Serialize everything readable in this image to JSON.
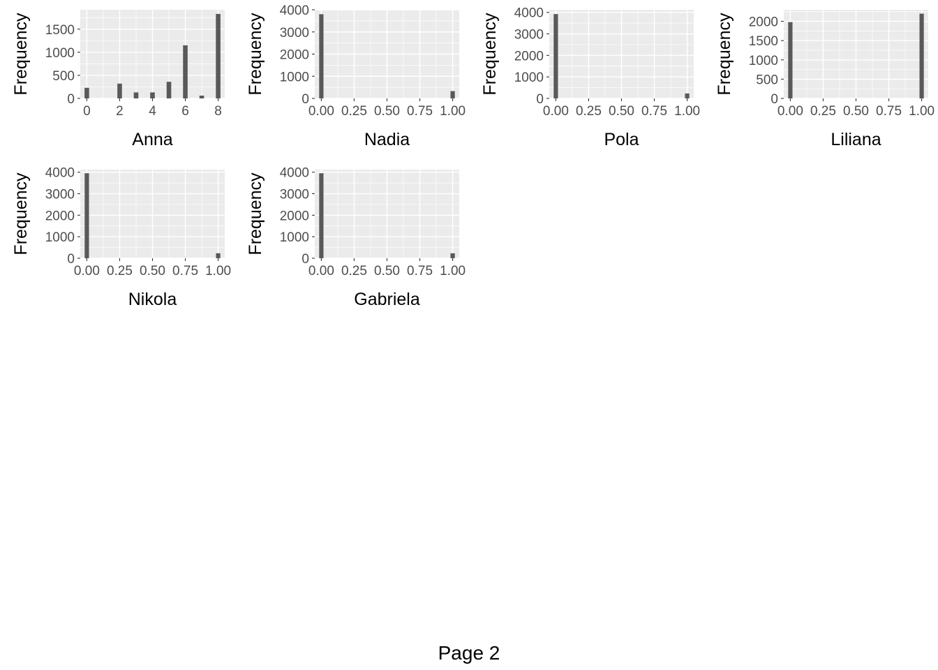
{
  "page": {
    "footer": "Page 2"
  },
  "colors": {
    "panel_background": "#ebebeb",
    "gridline": "#ffffff",
    "bar_fill": "#595959",
    "tick_text": "#4d4d4d",
    "axis_title": "#000000"
  },
  "chart_data": [
    {
      "type": "bar",
      "xlabel": "Anna",
      "ylabel": "Frequency",
      "x": [
        0,
        2,
        3,
        4,
        5,
        6,
        7,
        8
      ],
      "values": [
        230,
        320,
        130,
        130,
        360,
        1150,
        60,
        1830
      ],
      "xlim": [
        -0.4,
        8.4
      ],
      "ylim": [
        0,
        1920
      ],
      "xticks": [
        0,
        2,
        4,
        6,
        8
      ],
      "xtick_labels": [
        "0",
        "2",
        "4",
        "6",
        "8"
      ],
      "yticks": [
        0,
        500,
        1000,
        1500
      ],
      "ytick_labels": [
        "0",
        "500",
        "1000",
        "1500"
      ],
      "bar_width": 0.28,
      "grid": true
    },
    {
      "type": "bar",
      "xlabel": "Nadia",
      "ylabel": "Frequency",
      "x": [
        0,
        1
      ],
      "values": [
        3800,
        330
      ],
      "xlim": [
        -0.05,
        1.05
      ],
      "ylim": [
        0,
        4000
      ],
      "xticks": [
        0,
        0.25,
        0.5,
        0.75,
        1
      ],
      "xtick_labels": [
        "0.00",
        "0.25",
        "0.50",
        "0.75",
        "1.00"
      ],
      "yticks": [
        0,
        1000,
        2000,
        3000,
        4000
      ],
      "ytick_labels": [
        "0",
        "1000",
        "2000",
        "3000",
        "4000"
      ],
      "bar_width": 0.033,
      "grid": true
    },
    {
      "type": "bar",
      "xlabel": "Pola",
      "ylabel": "Frequency",
      "x": [
        0,
        1
      ],
      "values": [
        3920,
        230
      ],
      "xlim": [
        -0.05,
        1.05
      ],
      "ylim": [
        0,
        4120
      ],
      "xticks": [
        0,
        0.25,
        0.5,
        0.75,
        1
      ],
      "xtick_labels": [
        "0.00",
        "0.25",
        "0.50",
        "0.75",
        "1.00"
      ],
      "yticks": [
        0,
        1000,
        2000,
        3000,
        4000
      ],
      "ytick_labels": [
        "0",
        "1000",
        "2000",
        "3000",
        "4000"
      ],
      "bar_width": 0.033,
      "grid": true
    },
    {
      "type": "bar",
      "xlabel": "Liliana",
      "ylabel": "Frequency",
      "x": [
        0,
        1
      ],
      "values": [
        1980,
        2200
      ],
      "xlim": [
        -0.05,
        1.05
      ],
      "ylim": [
        0,
        2300
      ],
      "xticks": [
        0,
        0.25,
        0.5,
        0.75,
        1
      ],
      "xtick_labels": [
        "0.00",
        "0.25",
        "0.50",
        "0.75",
        "1.00"
      ],
      "yticks": [
        0,
        500,
        1000,
        1500,
        2000
      ],
      "ytick_labels": [
        "0",
        "500",
        "1000",
        "1500",
        "2000"
      ],
      "bar_width": 0.033,
      "grid": true
    },
    {
      "type": "bar",
      "xlabel": "Nikola",
      "ylabel": "Frequency",
      "x": [
        0,
        1
      ],
      "values": [
        3950,
        230
      ],
      "xlim": [
        -0.05,
        1.05
      ],
      "ylim": [
        0,
        4120
      ],
      "xticks": [
        0,
        0.25,
        0.5,
        0.75,
        1
      ],
      "xtick_labels": [
        "0.00",
        "0.25",
        "0.50",
        "0.75",
        "1.00"
      ],
      "yticks": [
        0,
        1000,
        2000,
        3000,
        4000
      ],
      "ytick_labels": [
        "0",
        "1000",
        "2000",
        "3000",
        "4000"
      ],
      "bar_width": 0.033,
      "grid": true
    },
    {
      "type": "bar",
      "xlabel": "Gabriela",
      "ylabel": "Frequency",
      "x": [
        0,
        1
      ],
      "values": [
        3950,
        230
      ],
      "xlim": [
        -0.05,
        1.05
      ],
      "ylim": [
        0,
        4120
      ],
      "xticks": [
        0,
        0.25,
        0.5,
        0.75,
        1
      ],
      "xtick_labels": [
        "0.00",
        "0.25",
        "0.50",
        "0.75",
        "1.00"
      ],
      "yticks": [
        0,
        1000,
        2000,
        3000,
        4000
      ],
      "ytick_labels": [
        "0",
        "1000",
        "2000",
        "3000",
        "4000"
      ],
      "bar_width": 0.033,
      "grid": true
    }
  ]
}
